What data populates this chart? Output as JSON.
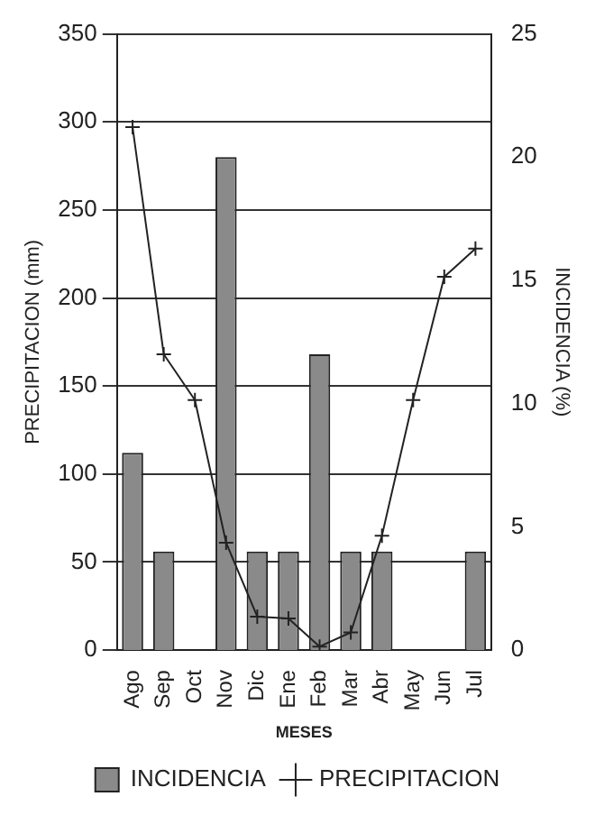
{
  "chart_data": {
    "type": "bar",
    "xlabel": "MESES",
    "ylabel": "PRECIPITACION (mm)",
    "y2label": "INCIDENCIA (%)",
    "categories": [
      "Ago",
      "Sep",
      "Oct",
      "Nov",
      "Dic",
      "Ene",
      "Feb",
      "Mar",
      "Abr",
      "May",
      "Jun",
      "Jul"
    ],
    "series": [
      {
        "name": "INCIDENCIA",
        "axis": "y2",
        "color": "#8a8a8a",
        "values": [
          8,
          4,
          0,
          20,
          4,
          4,
          12,
          4,
          4,
          0,
          0,
          4
        ]
      },
      {
        "name": "PRECIPITACION",
        "type": "line",
        "axis": "y",
        "color": "#222222",
        "marker": "cross",
        "values": [
          297,
          168,
          142,
          61,
          19,
          18,
          2,
          10,
          65,
          142,
          212,
          228
        ]
      }
    ],
    "ylim": [
      0,
      350
    ],
    "yticks": [
      0,
      50,
      100,
      150,
      200,
      250,
      300,
      350
    ],
    "y2lim": [
      0,
      25
    ],
    "y2ticks": [
      0,
      5,
      10,
      15,
      20,
      25
    ],
    "grid": "y",
    "legend": "bottom"
  }
}
